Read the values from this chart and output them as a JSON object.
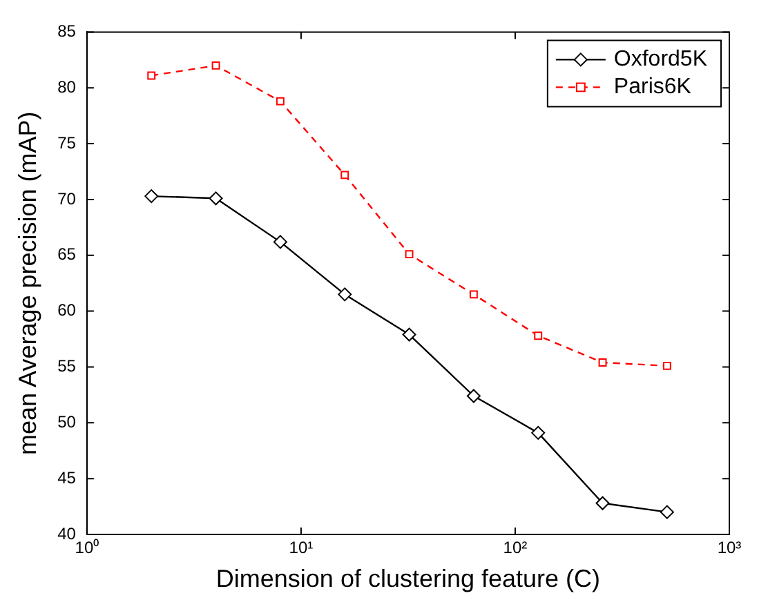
{
  "chart_data": {
    "type": "line",
    "xlabel": "Dimension of clustering feature (C)",
    "ylabel": "mean Average precision (mAP)",
    "x": [
      2,
      4,
      8,
      16,
      32,
      64,
      128,
      256,
      512
    ],
    "series": [
      {
        "name": "Oxford5K",
        "color": "#000000",
        "marker": "diamond",
        "line_style": "solid",
        "values": [
          70.3,
          70.1,
          66.2,
          61.5,
          57.9,
          52.4,
          49.1,
          42.8,
          42.0
        ]
      },
      {
        "name": "Paris6K",
        "color": "#ff0000",
        "marker": "square",
        "line_style": "dashed",
        "values": [
          81.1,
          82.0,
          78.8,
          72.2,
          65.1,
          61.5,
          57.8,
          55.4,
          55.1
        ]
      }
    ],
    "log": "x",
    "xlim": [
      1,
      1000
    ],
    "xticks": [
      {
        "value": 1,
        "label": "10⁰"
      },
      {
        "value": 10,
        "label": "10¹"
      },
      {
        "value": 100,
        "label": "10²"
      },
      {
        "value": 1000,
        "label": "10³"
      }
    ],
    "ylim": [
      40,
      85
    ],
    "yticks": [
      40,
      45,
      50,
      55,
      60,
      65,
      70,
      75,
      80,
      85
    ],
    "grid": false,
    "legend": "top right"
  }
}
